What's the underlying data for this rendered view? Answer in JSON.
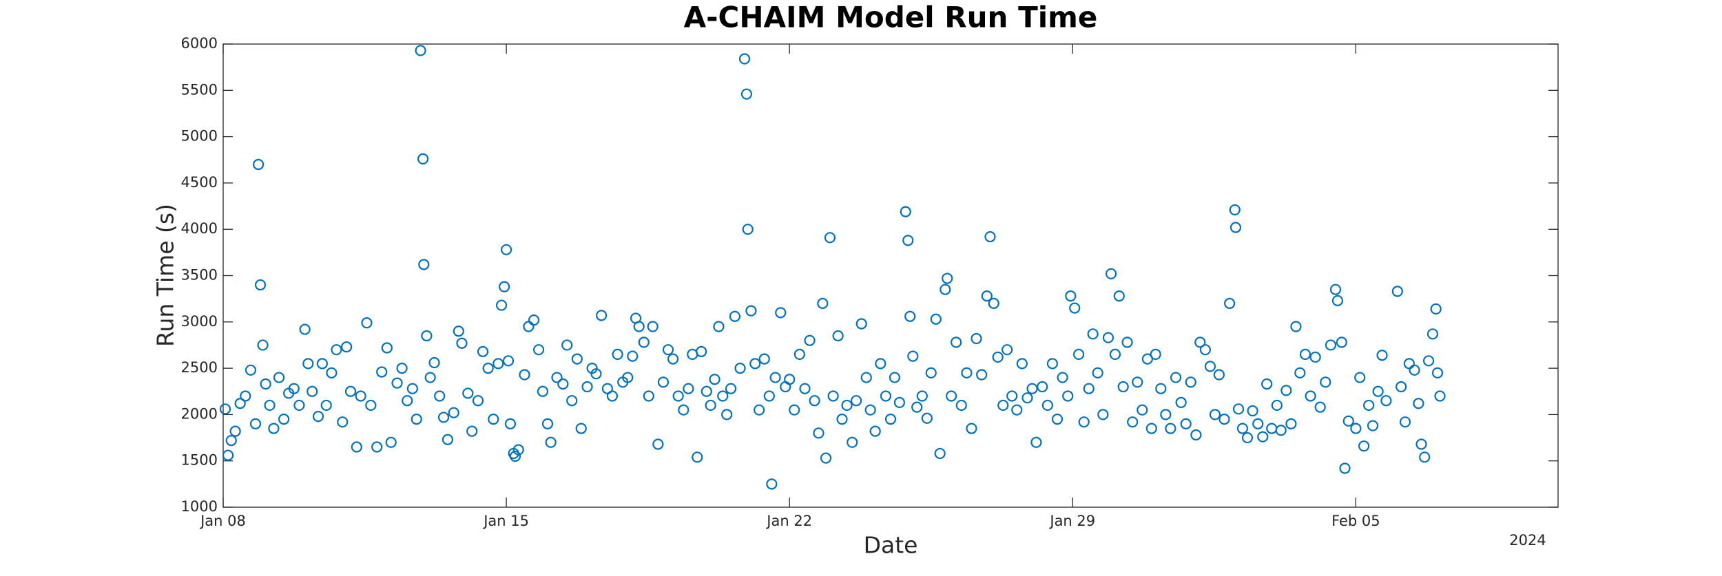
{
  "chart_data": {
    "type": "scatter",
    "title": "A-CHAIM Model Run Time",
    "x_label": "Date",
    "y_label": "Run Time (s)",
    "year_label": "2024",
    "color": "#0072bd",
    "marker": "circle",
    "xlim": [
      8,
      41
    ],
    "xticks": [
      {
        "value": 8,
        "label": "Jan 08"
      },
      {
        "value": 15,
        "label": "Jan 15"
      },
      {
        "value": 22,
        "label": "Jan 22"
      },
      {
        "value": 29,
        "label": "Jan 29"
      },
      {
        "value": 36,
        "label": "Feb 05"
      }
    ],
    "ylim": [
      1000,
      6000
    ],
    "yticks": [
      1000,
      1500,
      2000,
      2500,
      3000,
      3500,
      4000,
      4500,
      5000,
      5500,
      6000
    ],
    "x": [
      8.05,
      8.12,
      8.2,
      8.3,
      8.42,
      8.55,
      8.68,
      8.8,
      8.87,
      8.92,
      8.98,
      9.05,
      9.15,
      9.25,
      9.38,
      9.5,
      9.62,
      9.75,
      9.88,
      10.02,
      10.1,
      10.2,
      10.35,
      10.45,
      10.55,
      10.68,
      10.8,
      10.95,
      11.05,
      11.15,
      11.3,
      11.4,
      11.55,
      11.65,
      11.8,
      11.92,
      12.05,
      12.15,
      12.3,
      12.42,
      12.55,
      12.68,
      12.78,
      12.88,
      12.94,
      12.96,
      13.03,
      13.12,
      13.22,
      13.35,
      13.45,
      13.55,
      13.7,
      13.82,
      13.9,
      14.05,
      14.15,
      14.3,
      14.42,
      14.55,
      14.68,
      14.8,
      14.88,
      14.95,
      15.0,
      15.05,
      15.1,
      15.18,
      15.22,
      15.3,
      15.45,
      15.55,
      15.68,
      15.8,
      15.9,
      16.02,
      16.1,
      16.25,
      16.4,
      16.5,
      16.62,
      16.75,
      16.85,
      17.0,
      17.12,
      17.22,
      17.35,
      17.5,
      17.62,
      17.75,
      17.88,
      18.0,
      18.12,
      18.2,
      18.28,
      18.4,
      18.52,
      18.62,
      18.75,
      18.88,
      19.0,
      19.12,
      19.25,
      19.38,
      19.5,
      19.6,
      19.72,
      19.82,
      19.95,
      20.05,
      20.15,
      20.25,
      20.35,
      20.45,
      20.55,
      20.65,
      20.78,
      20.89,
      20.94,
      20.97,
      21.05,
      21.15,
      21.25,
      21.38,
      21.5,
      21.56,
      21.65,
      21.78,
      21.9,
      22.0,
      22.12,
      22.25,
      22.38,
      22.5,
      22.62,
      22.72,
      22.82,
      22.9,
      23.0,
      23.08,
      23.2,
      23.3,
      23.42,
      23.55,
      23.65,
      23.78,
      23.9,
      24.0,
      24.12,
      24.25,
      24.38,
      24.5,
      24.6,
      24.72,
      24.87,
      24.93,
      24.98,
      25.05,
      25.15,
      25.28,
      25.4,
      25.5,
      25.62,
      25.72,
      25.85,
      25.9,
      26.0,
      26.12,
      26.25,
      26.38,
      26.5,
      26.62,
      26.75,
      26.88,
      26.96,
      27.05,
      27.15,
      27.28,
      27.38,
      27.5,
      27.62,
      27.75,
      27.88,
      28.0,
      28.1,
      28.25,
      28.38,
      28.5,
      28.62,
      28.75,
      28.88,
      28.95,
      29.05,
      29.15,
      29.28,
      29.4,
      29.5,
      29.62,
      29.75,
      29.88,
      29.95,
      30.05,
      30.15,
      30.25,
      30.35,
      30.48,
      30.6,
      30.72,
      30.85,
      30.95,
      31.05,
      31.18,
      31.3,
      31.42,
      31.55,
      31.68,
      31.8,
      31.92,
      32.05,
      32.15,
      32.28,
      32.4,
      32.52,
      32.62,
      32.75,
      32.88,
      33.01,
      33.03,
      33.1,
      33.2,
      33.32,
      33.45,
      33.58,
      33.7,
      33.8,
      33.92,
      34.05,
      34.15,
      34.28,
      34.4,
      34.52,
      34.62,
      34.75,
      34.88,
      35.0,
      35.12,
      35.25,
      35.38,
      35.5,
      35.55,
      35.65,
      35.73,
      35.82,
      36.0,
      36.1,
      36.2,
      36.32,
      36.42,
      36.55,
      36.65,
      36.75,
      37.03,
      37.12,
      37.22,
      37.32,
      37.45,
      37.55,
      37.62,
      37.7,
      37.8,
      37.9,
      37.98,
      38.02,
      38.08
    ],
    "values": [
      2060,
      1560,
      1720,
      1820,
      2120,
      2200,
      2480,
      1900,
      4700,
      3400,
      2750,
      2330,
      2100,
      1850,
      2400,
      1950,
      2230,
      2280,
      2100,
      2920,
      2550,
      2250,
      1980,
      2550,
      2100,
      2450,
      2700,
      1920,
      2730,
      2250,
      1650,
      2200,
      2990,
      2100,
      1650,
      2460,
      2720,
      1700,
      2340,
      2500,
      2150,
      2280,
      1950,
      5930,
      4760,
      3620,
      2850,
      2400,
      2560,
      2200,
      1970,
      1730,
      2020,
      2900,
      2770,
      2230,
      1820,
      2150,
      2680,
      2500,
      1950,
      2550,
      3180,
      3380,
      3780,
      2580,
      1900,
      1580,
      1550,
      1620,
      2430,
      2950,
      3020,
      2700,
      2250,
      1900,
      1700,
      2400,
      2330,
      2750,
      2150,
      2600,
      1850,
      2300,
      2500,
      2440,
      3070,
      2280,
      2200,
      2650,
      2350,
      2400,
      2630,
      3040,
      2950,
      2780,
      2200,
      2950,
      1680,
      2350,
      2700,
      2600,
      2200,
      2050,
      2280,
      2650,
      1540,
      2680,
      2250,
      2100,
      2380,
      2950,
      2200,
      2000,
      2280,
      3060,
      2500,
      5840,
      5460,
      4000,
      3120,
      2550,
      2050,
      2600,
      2200,
      1250,
      2400,
      3100,
      2300,
      2380,
      2050,
      2650,
      2280,
      2800,
      2150,
      1800,
      3200,
      1530,
      3910,
      2200,
      2850,
      1950,
      2100,
      1700,
      2150,
      2980,
      2400,
      2050,
      1820,
      2550,
      2200,
      1950,
      2400,
      2130,
      4190,
      3880,
      3060,
      2630,
      2080,
      2200,
      1960,
      2450,
      3030,
      1580,
      3350,
      3470,
      2200,
      2780,
      2100,
      2450,
      1850,
      2820,
      2430,
      3280,
      3920,
      3200,
      2620,
      2100,
      2700,
      2200,
      2050,
      2550,
      2180,
      2280,
      1700,
      2300,
      2100,
      2550,
      1950,
      2400,
      2200,
      3280,
      3150,
      2650,
      1920,
      2280,
      2870,
      2450,
      2000,
      2830,
      3520,
      2650,
      3280,
      2300,
      2780,
      1920,
      2350,
      2050,
      2600,
      1850,
      2650,
      2280,
      2000,
      1850,
      2400,
      2130,
      1900,
      2350,
      1780,
      2780,
      2700,
      2520,
      2000,
      2430,
      1950,
      3200,
      4210,
      4020,
      2060,
      1850,
      1750,
      2040,
      1900,
      1760,
      2330,
      1850,
      2100,
      1830,
      2260,
      1900,
      2950,
      2450,
      2650,
      2200,
      2620,
      2080,
      2350,
      2750,
      3350,
      3230,
      2780,
      1420,
      1930,
      1850,
      2400,
      1660,
      2100,
      1880,
      2250,
      2640,
      2150,
      3330,
      2300,
      1920,
      2550,
      2480,
      2120,
      1680,
      1540,
      2580,
      2870,
      3140,
      2450,
      2200
    ]
  }
}
